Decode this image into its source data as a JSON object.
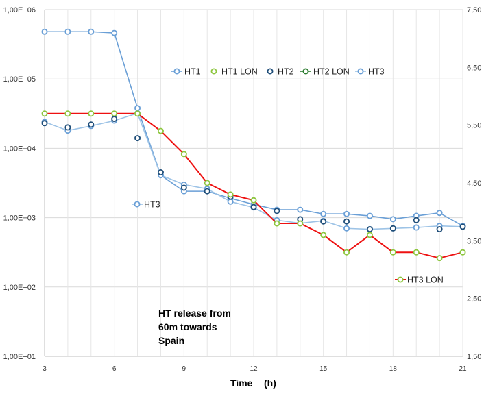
{
  "chart_data": {
    "type": "line",
    "title": "",
    "xlabel": "Time",
    "xlabel_unit": "(h)",
    "x_range": [
      3,
      21
    ],
    "x_ticks": [
      3,
      6,
      9,
      12,
      15,
      18,
      21
    ],
    "x_tick_labels": [
      "3",
      "6",
      "9",
      "12",
      "15",
      "18",
      "21"
    ],
    "y_scale": "log",
    "ylim": [
      10,
      1000000
    ],
    "y_ticks": [
      10,
      100,
      1000,
      10000,
      100000,
      1000000
    ],
    "y_tick_labels": [
      "1,00E+01",
      "1,00E+02",
      "1,00E+03",
      "1,00E+04",
      "1,00E+05",
      "1,00E+06"
    ],
    "y2_range": [
      1.5,
      7.5
    ],
    "y2_ticks": [
      1.5,
      2.5,
      3.5,
      4.5,
      5.5,
      6.5,
      7.5
    ],
    "y2_tick_labels": [
      "1,50",
      "2,50",
      "3,50",
      "4,50",
      "5,50",
      "6,50",
      "7,50"
    ],
    "grid": true,
    "legend_position": "top-center",
    "annotation": [
      "HT release from",
      "60m towards",
      "Spain"
    ],
    "series": [
      {
        "name": "HT1",
        "color": "#6a9fd6",
        "marker_edge": "#6a9fd6",
        "line": true,
        "axis": "left",
        "x": [
          3,
          4,
          5,
          6,
          7,
          8,
          9,
          10,
          11,
          12,
          13,
          14,
          15,
          16,
          17,
          18,
          19,
          20,
          21
        ],
        "values": [
          480000,
          480000,
          480000,
          460000,
          38000,
          4100,
          2400,
          2400,
          1900,
          1550,
          1300,
          1300,
          1130,
          1130,
          1060,
          950,
          1060,
          1170,
          760
        ]
      },
      {
        "name": "HT1 LON",
        "color": "#8dc63f",
        "marker_edge": "#8dc63f",
        "line": false,
        "axis": "left",
        "x": [],
        "values": []
      },
      {
        "name": "HT2",
        "color": "#1f4e79",
        "marker_edge": "#1f4e79",
        "line": false,
        "axis": "left",
        "x": [
          3,
          4,
          5,
          6,
          7,
          8,
          9,
          10,
          11,
          12,
          13,
          14,
          15,
          16,
          17,
          18,
          19,
          20,
          21
        ],
        "values": [
          23000,
          20000,
          22000,
          26500,
          14000,
          4500,
          2700,
          2400,
          2000,
          1420,
          1250,
          950,
          880,
          880,
          680,
          700,
          920,
          680,
          740
        ]
      },
      {
        "name": "HT2 LON",
        "color": "#2e7d32",
        "marker_edge": "#2e7d32",
        "line": false,
        "axis": "left",
        "x": [],
        "values": []
      },
      {
        "name": "HT3",
        "color": "#9dc3e6",
        "marker_edge": "#6a9fd6",
        "line": true,
        "axis": "left",
        "x": [
          3,
          4,
          5,
          6,
          7,
          8,
          9,
          10,
          11,
          12,
          13,
          14,
          15,
          16,
          17,
          18,
          19,
          20,
          21
        ],
        "values": [
          24000,
          18000,
          21000,
          25000,
          32000,
          4100,
          3000,
          2600,
          1700,
          1400,
          920,
          830,
          900,
          700,
          680,
          700,
          720,
          760,
          740
        ]
      },
      {
        "name": "HT3 LON",
        "color": "#ee1111",
        "marker_edge": "#8dc63f",
        "line": true,
        "axis": "right",
        "x": [
          3,
          4,
          5,
          6,
          7,
          8,
          9,
          10,
          11,
          12,
          13,
          14,
          15,
          16,
          17,
          18,
          19,
          20,
          21
        ],
        "values": [
          5.7,
          5.7,
          5.7,
          5.7,
          5.7,
          5.4,
          5.0,
          4.5,
          4.3,
          4.2,
          3.8,
          3.8,
          3.6,
          3.3,
          3.6,
          3.3,
          3.3,
          3.2,
          3.3
        ]
      }
    ],
    "legend_entries": [
      "HT1",
      "HT1 LON",
      "HT2",
      "HT2 LON",
      "HT3"
    ],
    "inline_labels": [
      "HT3",
      "HT3 LON"
    ]
  }
}
